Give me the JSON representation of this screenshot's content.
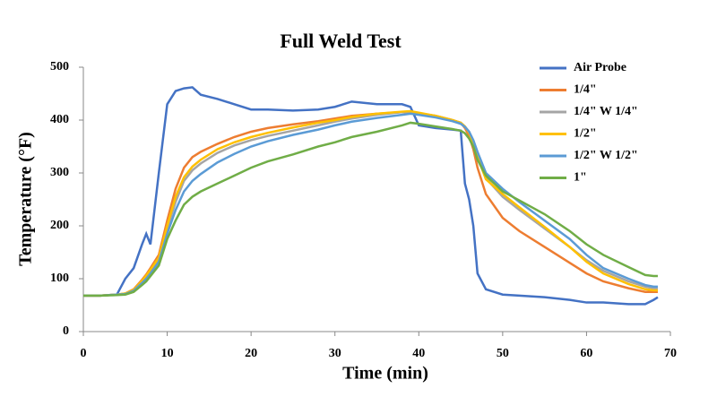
{
  "chart_data": {
    "type": "line",
    "title": "Full Weld Test",
    "x_label": "Time (min)",
    "y_label": "Temperature (°F)",
    "x": [
      0,
      2,
      4,
      5,
      6,
      7,
      7.5,
      8,
      9,
      10,
      11,
      12,
      13,
      14,
      16,
      18,
      20,
      22,
      25,
      28,
      30,
      32,
      35,
      38,
      39,
      40,
      42,
      44,
      45,
      45.5,
      46,
      46.5,
      47,
      48,
      50,
      52,
      55,
      58,
      60,
      62,
      65,
      67,
      68,
      68.5
    ],
    "series": [
      {
        "name": "Air Probe",
        "color": "#4472c4",
        "values": [
          68,
          68,
          70,
          100,
          120,
          165,
          185,
          165,
          300,
          430,
          455,
          460,
          462,
          448,
          440,
          430,
          420,
          420,
          418,
          420,
          425,
          435,
          430,
          430,
          425,
          390,
          385,
          382,
          380,
          280,
          250,
          200,
          110,
          80,
          70,
          68,
          65,
          60,
          55,
          55,
          52,
          52,
          60,
          65
        ]
      },
      {
        "name": "1/4\"",
        "color": "#ed7d31",
        "values": [
          68,
          68,
          70,
          72,
          80,
          98,
          108,
          120,
          145,
          210,
          270,
          310,
          330,
          340,
          355,
          368,
          378,
          385,
          392,
          398,
          403,
          408,
          412,
          415,
          415,
          413,
          408,
          400,
          395,
          385,
          370,
          345,
          310,
          260,
          215,
          190,
          160,
          130,
          110,
          95,
          82,
          75,
          75,
          75
        ]
      },
      {
        "name": "1/4\" W 1/4\"",
        "color": "#a5a5a5",
        "values": [
          68,
          68,
          70,
          72,
          78,
          95,
          104,
          115,
          138,
          195,
          245,
          285,
          305,
          318,
          338,
          352,
          362,
          370,
          380,
          390,
          397,
          403,
          410,
          415,
          416,
          413,
          408,
          400,
          395,
          388,
          378,
          360,
          335,
          290,
          255,
          230,
          195,
          160,
          135,
          115,
          95,
          85,
          82,
          82
        ]
      },
      {
        "name": "1/2\"",
        "color": "#ffc000",
        "values": [
          68,
          68,
          70,
          72,
          79,
          96,
          106,
          117,
          140,
          200,
          255,
          292,
          312,
          325,
          345,
          358,
          368,
          376,
          386,
          395,
          400,
          406,
          412,
          416,
          417,
          414,
          408,
          400,
          395,
          388,
          376,
          356,
          330,
          288,
          260,
          235,
          198,
          160,
          132,
          110,
          90,
          80,
          78,
          78
        ]
      },
      {
        "name": "1/2\" W 1/2\"",
        "color": "#5b9bd5",
        "values": [
          68,
          68,
          70,
          71,
          77,
          92,
          100,
          110,
          132,
          185,
          230,
          265,
          285,
          298,
          320,
          336,
          350,
          360,
          372,
          382,
          390,
          397,
          404,
          410,
          412,
          410,
          405,
          398,
          393,
          387,
          378,
          362,
          340,
          300,
          270,
          245,
          210,
          175,
          145,
          120,
          100,
          88,
          85,
          85
        ]
      },
      {
        "name": "1\"",
        "color": "#70ad47",
        "values": [
          68,
          68,
          69,
          70,
          75,
          88,
          95,
          105,
          125,
          175,
          210,
          240,
          255,
          265,
          280,
          295,
          310,
          322,
          335,
          350,
          358,
          368,
          378,
          390,
          395,
          393,
          388,
          383,
          380,
          375,
          365,
          350,
          325,
          295,
          265,
          248,
          222,
          190,
          165,
          145,
          122,
          107,
          105,
          105
        ]
      }
    ],
    "xlim": [
      0,
      70
    ],
    "xticks": [
      0,
      10,
      20,
      30,
      40,
      50,
      60,
      70
    ],
    "ylim": [
      0,
      500
    ],
    "yticks": [
      0,
      100,
      200,
      300,
      400,
      500
    ]
  }
}
